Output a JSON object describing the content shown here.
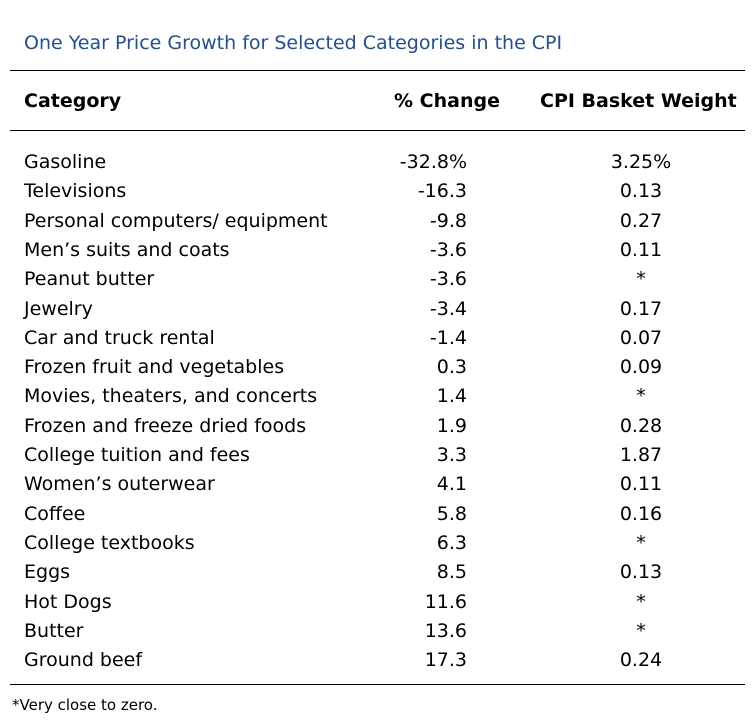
{
  "title": "One Year Price Growth for Selected Categories in the CPI",
  "table": {
    "header": [
      "Category",
      "% Change",
      "CPI Basket Weight"
    ],
    "rows": [
      [
        "Gasoline",
        "-32.8%",
        "3.25%"
      ],
      [
        "Televisions",
        "-16.3",
        "0.13"
      ],
      [
        "Personal computers/ equipment",
        "-9.8",
        "0.27"
      ],
      [
        "Men’s suits and coats",
        "-3.6",
        "0.11"
      ],
      [
        "Peanut butter",
        "-3.6",
        "*"
      ],
      [
        "Jewelry",
        "-3.4",
        "0.17"
      ],
      [
        "Car and truck rental",
        "-1.4",
        "0.07"
      ],
      [
        "Frozen fruit and vegetables",
        "0.3",
        "0.09"
      ],
      [
        "Movies, theaters, and concerts",
        "1.4",
        "*"
      ],
      [
        "Frozen and freeze dried foods",
        "1.9",
        "0.28"
      ],
      [
        "College tuition and fees",
        "3.3",
        "1.87"
      ],
      [
        "Women’s outerwear",
        "4.1",
        "0.11"
      ],
      [
        "Coffee",
        "5.8",
        "0.16"
      ],
      [
        "College textbooks",
        "6.3",
        "*"
      ],
      [
        "Eggs",
        "8.5",
        "0.13"
      ],
      [
        "Hot Dogs",
        "11.6",
        "*"
      ],
      [
        "Butter",
        "13.6",
        "*"
      ],
      [
        "Ground beef",
        "17.3",
        "0.24"
      ]
    ]
  },
  "footnote": "*Very close to zero."
}
